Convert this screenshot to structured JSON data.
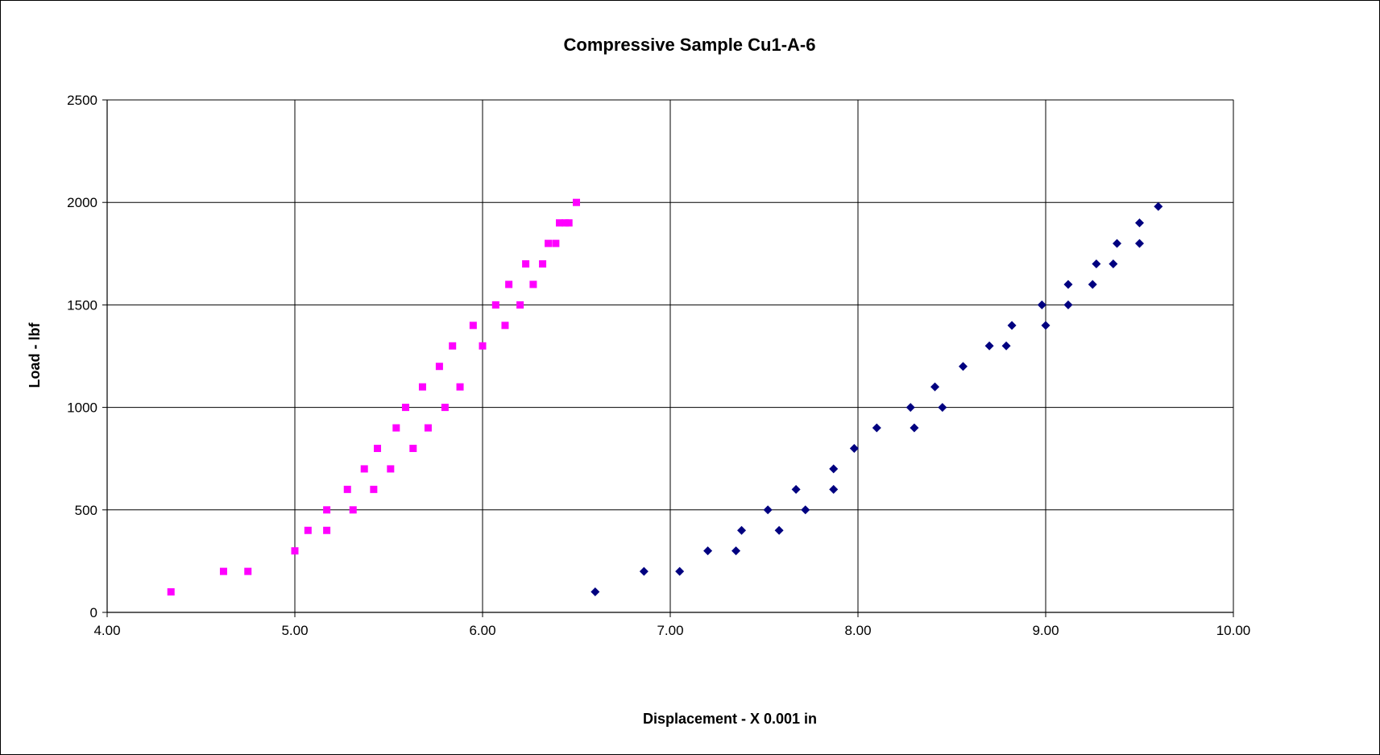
{
  "chart_data": {
    "type": "scatter",
    "title": "Compressive Sample Cu1-A-6",
    "xlabel": "Displacement - X 0.001 in",
    "ylabel": "Load - lbf",
    "xlim": [
      4.0,
      10.0
    ],
    "ylim": [
      0,
      2500
    ],
    "x_ticks": [
      "4.00",
      "5.00",
      "6.00",
      "7.00",
      "8.00",
      "9.00",
      "10.00"
    ],
    "y_ticks": [
      "0",
      "500",
      "1000",
      "1500",
      "2000",
      "2500"
    ],
    "grid": true,
    "legend": "none",
    "series": [
      {
        "color": "#ff00ff",
        "marker": "square",
        "points": [
          [
            4.34,
            100
          ],
          [
            4.62,
            200
          ],
          [
            4.75,
            200
          ],
          [
            5.0,
            300
          ],
          [
            5.07,
            400
          ],
          [
            5.17,
            400
          ],
          [
            5.17,
            500
          ],
          [
            5.28,
            600
          ],
          [
            5.31,
            500
          ],
          [
            5.37,
            700
          ],
          [
            5.42,
            600
          ],
          [
            5.44,
            800
          ],
          [
            5.51,
            700
          ],
          [
            5.54,
            900
          ],
          [
            5.59,
            1000
          ],
          [
            5.63,
            800
          ],
          [
            5.68,
            1100
          ],
          [
            5.71,
            900
          ],
          [
            5.77,
            1200
          ],
          [
            5.8,
            1000
          ],
          [
            5.84,
            1300
          ],
          [
            5.88,
            1100
          ],
          [
            5.95,
            1400
          ],
          [
            6.0,
            1300
          ],
          [
            6.07,
            1500
          ],
          [
            6.12,
            1400
          ],
          [
            6.14,
            1600
          ],
          [
            6.2,
            1500
          ],
          [
            6.23,
            1700
          ],
          [
            6.27,
            1600
          ],
          [
            6.32,
            1700
          ],
          [
            6.35,
            1800
          ],
          [
            6.39,
            1800
          ],
          [
            6.41,
            1900
          ],
          [
            6.44,
            1900
          ],
          [
            6.46,
            1900
          ],
          [
            6.5,
            2000
          ]
        ]
      },
      {
        "color": "#000080",
        "marker": "diamond",
        "points": [
          [
            6.6,
            100
          ],
          [
            6.86,
            200
          ],
          [
            7.05,
            200
          ],
          [
            7.2,
            300
          ],
          [
            7.35,
            300
          ],
          [
            7.38,
            400
          ],
          [
            7.52,
            500
          ],
          [
            7.58,
            400
          ],
          [
            7.67,
            600
          ],
          [
            7.72,
            500
          ],
          [
            7.87,
            600
          ],
          [
            7.87,
            700
          ],
          [
            7.98,
            800
          ],
          [
            8.1,
            900
          ],
          [
            8.28,
            1000
          ],
          [
            8.3,
            900
          ],
          [
            8.41,
            1100
          ],
          [
            8.45,
            1000
          ],
          [
            8.56,
            1200
          ],
          [
            8.7,
            1300
          ],
          [
            8.79,
            1300
          ],
          [
            8.82,
            1400
          ],
          [
            8.98,
            1500
          ],
          [
            9.0,
            1400
          ],
          [
            9.12,
            1500
          ],
          [
            9.12,
            1600
          ],
          [
            9.25,
            1600
          ],
          [
            9.27,
            1700
          ],
          [
            9.36,
            1700
          ],
          [
            9.38,
            1800
          ],
          [
            9.5,
            1800
          ],
          [
            9.5,
            1900
          ],
          [
            9.6,
            1980
          ]
        ]
      }
    ]
  }
}
